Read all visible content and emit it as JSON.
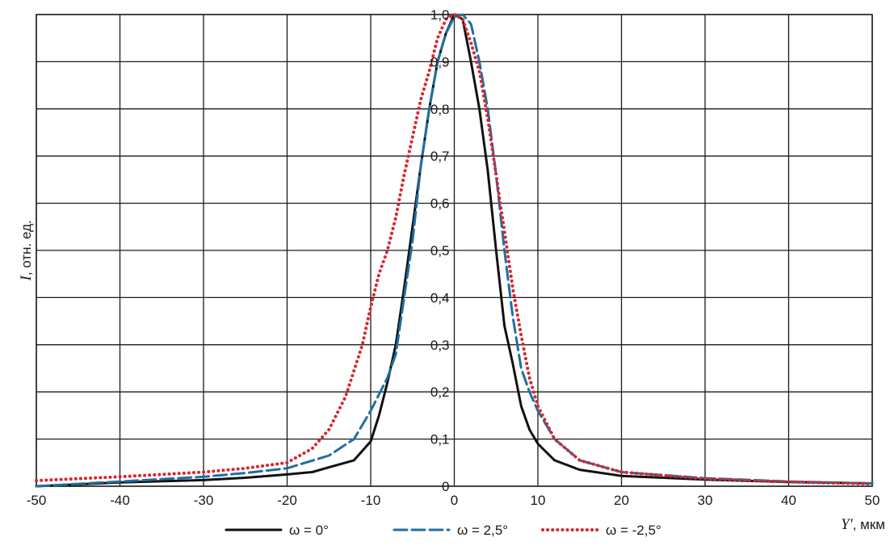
{
  "chart_data": {
    "type": "line",
    "title": "",
    "ylabel_symbol": "I",
    "ylabel_rest": ", отн. ед.",
    "xlabel_symbol": "Y'",
    "xlabel_rest": ", мкм",
    "xlim": [
      -50,
      50
    ],
    "ylim": [
      0,
      1.0
    ],
    "x_ticks": [
      "-50",
      "-40",
      "-30",
      "-20",
      "-10",
      "0",
      "10",
      "20",
      "30",
      "40",
      "50"
    ],
    "y_ticks": [
      "0",
      "0,1",
      "0,2",
      "0,3",
      "0,4",
      "0,5",
      "0,6",
      "0,7",
      "0,8",
      "0,9",
      "1,0"
    ],
    "grid": true,
    "legend_position": "bottom",
    "series": [
      {
        "name": "ω = 0°",
        "color": "#111111",
        "style": "solid",
        "x": [
          -50,
          -40,
          -30,
          -25,
          -20,
          -17,
          -15,
          -12,
          -10,
          -9,
          -8,
          -7,
          -6,
          -5,
          -4,
          -3,
          -2,
          -1,
          0,
          1,
          2,
          3,
          4,
          5,
          6,
          7,
          8,
          9,
          10,
          12,
          15,
          20,
          30,
          40,
          50
        ],
        "y": [
          0.0,
          0.008,
          0.013,
          0.018,
          0.025,
          0.03,
          0.04,
          0.055,
          0.095,
          0.15,
          0.22,
          0.3,
          0.42,
          0.55,
          0.68,
          0.8,
          0.9,
          0.96,
          1.0,
          0.99,
          0.9,
          0.8,
          0.67,
          0.5,
          0.34,
          0.26,
          0.17,
          0.12,
          0.09,
          0.055,
          0.035,
          0.022,
          0.014,
          0.009,
          0.006
        ]
      },
      {
        "name": "ω = 2,5°",
        "color": "#1f6fa3",
        "style": "dashed",
        "x": [
          -50,
          -40,
          -30,
          -25,
          -20,
          -15,
          -12,
          -10,
          -8,
          -7,
          -6,
          -5,
          -4,
          -3,
          -2,
          -1,
          0,
          1,
          2,
          3,
          4,
          5,
          6,
          7,
          8,
          9,
          10,
          12,
          15,
          20,
          30,
          40,
          50
        ],
        "y": [
          0.0,
          0.01,
          0.02,
          0.028,
          0.038,
          0.065,
          0.1,
          0.16,
          0.23,
          0.28,
          0.4,
          0.52,
          0.68,
          0.8,
          0.9,
          0.96,
          0.995,
          1.0,
          0.98,
          0.9,
          0.8,
          0.66,
          0.5,
          0.36,
          0.25,
          0.2,
          0.16,
          0.1,
          0.055,
          0.03,
          0.017,
          0.01,
          0.006
        ]
      },
      {
        "name": "ω = -2,5°",
        "color": "#d9262e",
        "style": "dotted",
        "x": [
          -50,
          -40,
          -30,
          -25,
          -20,
          -17,
          -15,
          -13,
          -11,
          -10,
          -9,
          -8,
          -7,
          -6,
          -5,
          -4,
          -3,
          -2,
          -1,
          0,
          1,
          2,
          3,
          4,
          5,
          6,
          7,
          8,
          9,
          10,
          12,
          15,
          20,
          30,
          40,
          50
        ],
        "y": [
          0.012,
          0.02,
          0.03,
          0.038,
          0.05,
          0.08,
          0.12,
          0.19,
          0.3,
          0.38,
          0.45,
          0.5,
          0.57,
          0.66,
          0.74,
          0.82,
          0.88,
          0.95,
          0.99,
          1.0,
          0.99,
          0.94,
          0.88,
          0.78,
          0.66,
          0.54,
          0.42,
          0.32,
          0.23,
          0.17,
          0.1,
          0.055,
          0.03,
          0.016,
          0.009,
          0.005
        ]
      }
    ]
  }
}
